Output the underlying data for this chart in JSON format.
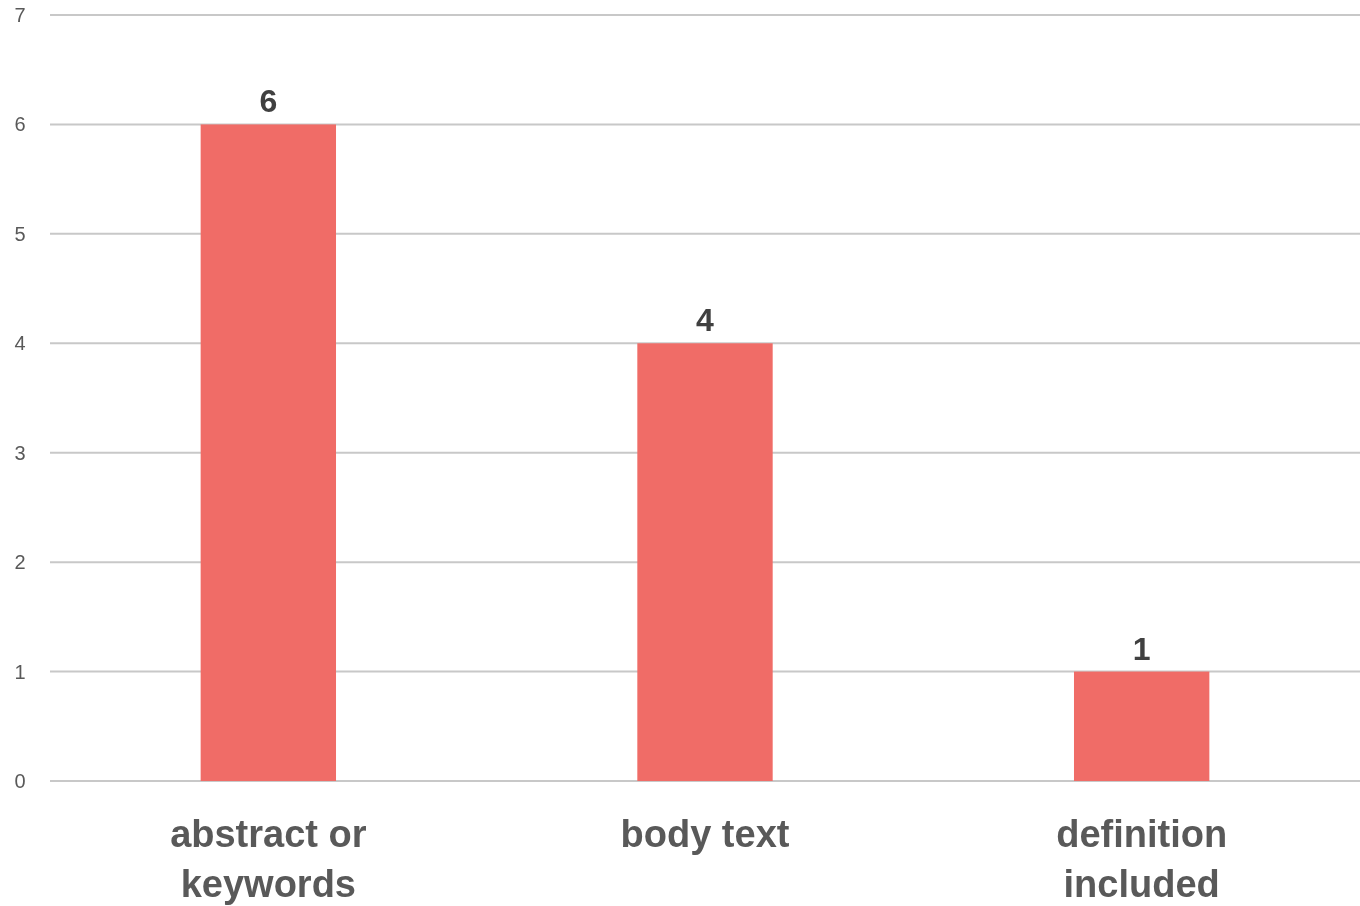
{
  "chart_data": {
    "type": "bar",
    "categories": [
      "abstract or keywords",
      "body text",
      "definition included"
    ],
    "values": [
      6,
      4,
      1
    ],
    "color": "#f06c67",
    "data_labels": true,
    "ylim": [
      0,
      7
    ],
    "yticks": [
      0,
      1,
      2,
      3,
      4,
      5,
      6,
      7
    ],
    "grid": "y"
  }
}
